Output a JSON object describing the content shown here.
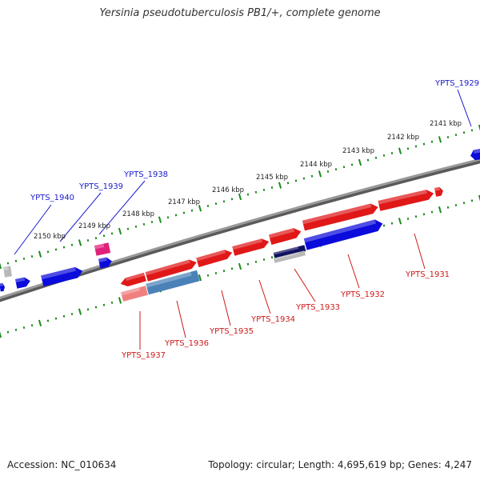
{
  "title": "Yersinia pseudotuberculosis PB1/+, complete genome",
  "footer": {
    "accession": "Accession: NC_010634",
    "summary": "Topology: circular; Length: 4,695,619 bp; Genes: 4,247"
  },
  "colors": {
    "backbone": "#8c8c8c",
    "tick_track": "#1a8a1a",
    "forward_label": "#1a1acc",
    "reverse_label": "#cc1a1a",
    "forward_gene": "#0b0bdc",
    "reverse_gene": "#e01818",
    "pink_gene": "#e0207a",
    "gray_gene": "#b8b8b8",
    "steel_gene": "#4a82b8",
    "salmon_gene": "#f08080",
    "navy_gene": "#101060"
  },
  "kbp_labels": [
    "2141 kbp",
    "2142 kbp",
    "2143 kbp",
    "2144 kbp",
    "2145 kbp",
    "2146 kbp",
    "2147 kbp",
    "2148 kbp",
    "2149 kbp",
    "2150 kbp"
  ],
  "gene_labels_forward": [
    "YPTS_1929",
    "YPTS_1938",
    "YPTS_1939",
    "YPTS_1940"
  ],
  "gene_labels_reverse": [
    "YPTS_1931",
    "YPTS_1932",
    "YPTS_1933",
    "YPTS_1934",
    "YPTS_1935",
    "YPTS_1936",
    "YPTS_1937"
  ]
}
